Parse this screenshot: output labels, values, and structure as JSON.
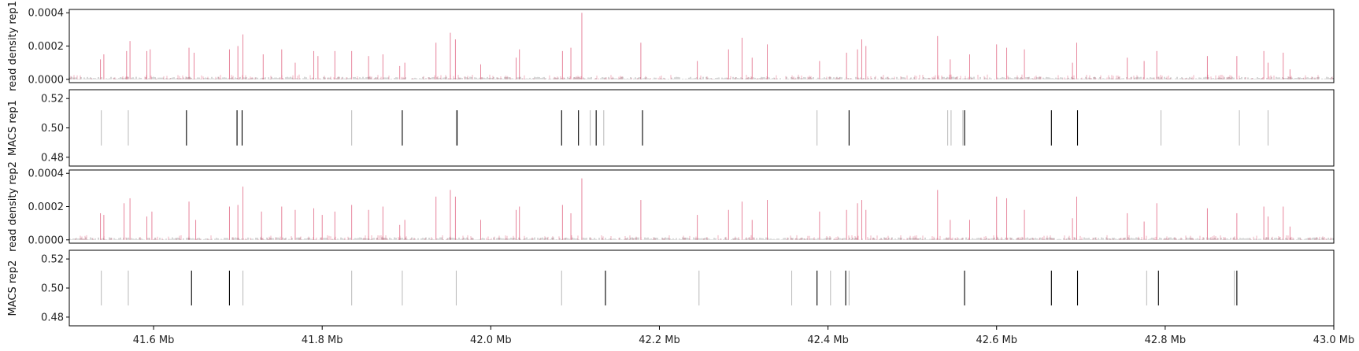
{
  "chart_data": {
    "type": "track-plot",
    "x_unit_suffix": " Mb",
    "xlim": [
      41.5,
      43.0
    ],
    "x_ticks": [
      "41.6 Mb",
      "41.8 Mb",
      "42.0 Mb",
      "42.2 Mb",
      "42.4 Mb",
      "42.6 Mb",
      "42.8 Mb",
      "43.0 Mb"
    ],
    "x_tick_values": [
      41.6,
      41.8,
      42.0,
      42.2,
      42.4,
      42.6,
      42.8,
      43.0
    ],
    "colors": {
      "signal": "#e0607e",
      "baseline": "#222222",
      "peak_strong": "#000000",
      "peak_weak": "#b8b8b8"
    },
    "panels": [
      {
        "kind": "density",
        "ylabel": "read density rep1",
        "ylim": [
          -2e-05,
          0.00042
        ],
        "y_ticks": [
          "0.0000",
          "0.0002",
          "0.0004"
        ],
        "y_tick_values": [
          0.0,
          0.0002,
          0.0004
        ],
        "peaks": [
          [
            41.537,
            0.00012
          ],
          [
            41.541,
            0.00015
          ],
          [
            41.568,
            0.00017
          ],
          [
            41.572,
            0.00023
          ],
          [
            41.592,
            0.00017
          ],
          [
            41.596,
            0.00018
          ],
          [
            41.642,
            0.00019
          ],
          [
            41.648,
            0.00016
          ],
          [
            41.69,
            0.00018
          ],
          [
            41.7,
            0.0002
          ],
          [
            41.706,
            0.00027
          ],
          [
            41.73,
            0.00015
          ],
          [
            41.752,
            0.00018
          ],
          [
            41.768,
            0.0001
          ],
          [
            41.79,
            0.00017
          ],
          [
            41.795,
            0.00014
          ],
          [
            41.815,
            0.00017
          ],
          [
            41.835,
            0.00017
          ],
          [
            41.855,
            0.00014
          ],
          [
            41.872,
            0.00015
          ],
          [
            41.892,
            8e-05
          ],
          [
            41.898,
            0.0001
          ],
          [
            41.935,
            0.00022
          ],
          [
            41.952,
            0.00028
          ],
          [
            41.958,
            0.00024
          ],
          [
            41.988,
            9e-05
          ],
          [
            42.03,
            0.00013
          ],
          [
            42.034,
            0.00018
          ],
          [
            42.085,
            0.00017
          ],
          [
            42.095,
            0.00019
          ],
          [
            42.108,
            0.0004
          ],
          [
            42.178,
            0.00022
          ],
          [
            42.245,
            0.00011
          ],
          [
            42.282,
            0.00018
          ],
          [
            42.298,
            0.00025
          ],
          [
            42.31,
            0.00013
          ],
          [
            42.328,
            0.00021
          ],
          [
            42.39,
            0.00011
          ],
          [
            42.422,
            0.00016
          ],
          [
            42.435,
            0.00018
          ],
          [
            42.44,
            0.00024
          ],
          [
            42.445,
            0.0002
          ],
          [
            42.53,
            0.00026
          ],
          [
            42.545,
            0.00012
          ],
          [
            42.568,
            0.00015
          ],
          [
            42.6,
            0.00021
          ],
          [
            42.612,
            0.00019
          ],
          [
            42.633,
            0.00018
          ],
          [
            42.69,
            0.0001
          ],
          [
            42.695,
            0.00022
          ],
          [
            42.755,
            0.00013
          ],
          [
            42.775,
            0.00011
          ],
          [
            42.79,
            0.00017
          ],
          [
            42.85,
            0.00014
          ],
          [
            42.885,
            0.00014
          ],
          [
            42.917,
            0.00017
          ],
          [
            42.922,
            0.0001
          ],
          [
            42.94,
            0.00016
          ],
          [
            42.948,
            6e-05
          ]
        ]
      },
      {
        "kind": "peaks",
        "ylabel": "MACS rep1",
        "ylim": [
          0.474,
          0.526
        ],
        "y_ticks": [
          "0.48",
          "0.50",
          "0.52"
        ],
        "y_tick_values": [
          0.48,
          0.5,
          0.52
        ],
        "strong": [
          41.639,
          41.699,
          41.705,
          41.895,
          41.96,
          42.084,
          42.104,
          42.125,
          42.18,
          42.425,
          42.562,
          42.665,
          42.696
        ],
        "weak": [
          41.538,
          41.57,
          41.835,
          41.959,
          42.118,
          42.134,
          42.387,
          42.542,
          42.546,
          42.56,
          42.795,
          42.888,
          42.922
        ]
      },
      {
        "kind": "density",
        "ylabel": "read density rep2",
        "ylim": [
          -2e-05,
          0.00042
        ],
        "y_ticks": [
          "0.0000",
          "0.0002",
          "0.0004"
        ],
        "y_tick_values": [
          0.0,
          0.0002,
          0.0004
        ],
        "peaks": [
          [
            41.537,
            0.00016
          ],
          [
            41.541,
            0.00015
          ],
          [
            41.565,
            0.00022
          ],
          [
            41.572,
            0.00025
          ],
          [
            41.592,
            0.00014
          ],
          [
            41.598,
            0.00017
          ],
          [
            41.642,
            0.00023
          ],
          [
            41.65,
            0.00012
          ],
          [
            41.69,
            0.0002
          ],
          [
            41.7,
            0.00021
          ],
          [
            41.706,
            0.00032
          ],
          [
            41.728,
            0.00017
          ],
          [
            41.752,
            0.0002
          ],
          [
            41.768,
            0.00018
          ],
          [
            41.79,
            0.00019
          ],
          [
            41.8,
            0.00015
          ],
          [
            41.815,
            0.00017
          ],
          [
            41.835,
            0.00021
          ],
          [
            41.855,
            0.00018
          ],
          [
            41.872,
            0.0002
          ],
          [
            41.892,
            9e-05
          ],
          [
            41.898,
            0.00012
          ],
          [
            41.935,
            0.00026
          ],
          [
            41.952,
            0.0003
          ],
          [
            41.958,
            0.00026
          ],
          [
            41.988,
            0.00012
          ],
          [
            42.03,
            0.00018
          ],
          [
            42.034,
            0.0002
          ],
          [
            42.085,
            0.00021
          ],
          [
            42.095,
            0.00016
          ],
          [
            42.108,
            0.00037
          ],
          [
            42.178,
            0.00024
          ],
          [
            42.245,
            0.00015
          ],
          [
            42.282,
            0.00018
          ],
          [
            42.298,
            0.00023
          ],
          [
            42.31,
            0.00012
          ],
          [
            42.328,
            0.00024
          ],
          [
            42.39,
            0.00017
          ],
          [
            42.422,
            0.00018
          ],
          [
            42.435,
            0.00022
          ],
          [
            42.44,
            0.00024
          ],
          [
            42.445,
            0.00018
          ],
          [
            42.53,
            0.0003
          ],
          [
            42.545,
            0.00012
          ],
          [
            42.568,
            0.00012
          ],
          [
            42.6,
            0.00026
          ],
          [
            42.612,
            0.00025
          ],
          [
            42.633,
            0.00018
          ],
          [
            42.69,
            0.00013
          ],
          [
            42.695,
            0.00026
          ],
          [
            42.755,
            0.00016
          ],
          [
            42.775,
            0.00011
          ],
          [
            42.79,
            0.00022
          ],
          [
            42.85,
            0.00019
          ],
          [
            42.885,
            0.00016
          ],
          [
            42.917,
            0.0002
          ],
          [
            42.922,
            0.00014
          ],
          [
            42.94,
            0.0002
          ],
          [
            42.948,
            8e-05
          ]
        ]
      },
      {
        "kind": "peaks",
        "ylabel": "MACS rep2",
        "ylim": [
          0.474,
          0.526
        ],
        "y_ticks": [
          "0.48",
          "0.50",
          "0.52"
        ],
        "y_tick_values": [
          0.48,
          0.5,
          0.52
        ],
        "strong": [
          41.645,
          41.69,
          42.136,
          42.387,
          42.421,
          42.562,
          42.665,
          42.696,
          42.792,
          42.885
        ],
        "weak": [
          41.538,
          41.57,
          41.706,
          41.835,
          41.895,
          41.959,
          42.084,
          42.247,
          42.357,
          42.403,
          42.425,
          42.778,
          42.882
        ]
      }
    ]
  }
}
